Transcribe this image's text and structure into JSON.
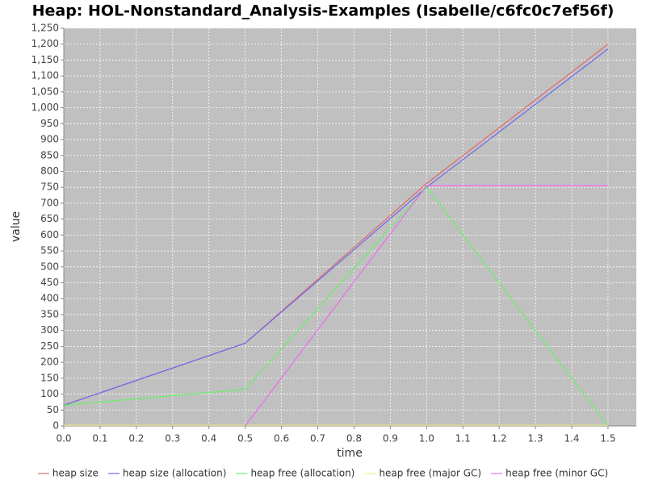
{
  "chart_data": {
    "type": "line",
    "title": "Heap: HOL-Nonstandard_Analysis-Examples (Isabelle/c6fc0c7ef56f)",
    "x_label": "time",
    "y_label": "value",
    "x": [
      0,
      0.5,
      1.0,
      1.5
    ],
    "series": [
      {
        "name": "heap size",
        "color": "#e06a6a",
        "values": [
          65,
          260,
          762,
          1200
        ]
      },
      {
        "name": "heap size (allocation)",
        "color": "#6a6aee",
        "values": [
          65,
          260,
          750,
          1185
        ]
      },
      {
        "name": "heap free (allocation)",
        "color": "#6aee6a",
        "values": [
          65,
          115,
          750,
          0
        ]
      },
      {
        "name": "heap free (major GC)",
        "color": "#eeee8a",
        "values": [
          2,
          2,
          2,
          2
        ]
      },
      {
        "name": "heap free (minor GC)",
        "color": "#ee6aee",
        "values": [
          null,
          0,
          755,
          755
        ]
      }
    ],
    "xlim": [
      0,
      1.578
    ],
    "ylim": [
      0,
      1250
    ],
    "xticks": [
      {
        "value": 0,
        "label": "0.0"
      },
      0.1,
      0.2,
      0.3,
      0.4,
      0.5,
      0.6,
      0.7,
      0.8,
      0.9,
      {
        "value": 1,
        "label": "1.0"
      },
      1.1,
      1.2,
      1.3,
      1.4,
      1.5
    ],
    "yticks": [
      0,
      50,
      100,
      150,
      200,
      250,
      300,
      350,
      400,
      450,
      500,
      550,
      600,
      650,
      700,
      750,
      800,
      850,
      900,
      950,
      {
        "value": 1000,
        "label": "1,000"
      },
      {
        "value": 1050,
        "label": "1,050"
      },
      {
        "value": 1100,
        "label": "1,100"
      },
      {
        "value": 1150,
        "label": "1,150"
      },
      {
        "value": 1200,
        "label": "1,200"
      },
      {
        "value": 1250,
        "label": "1,250"
      }
    ],
    "grid": true,
    "legend": "bottom"
  }
}
